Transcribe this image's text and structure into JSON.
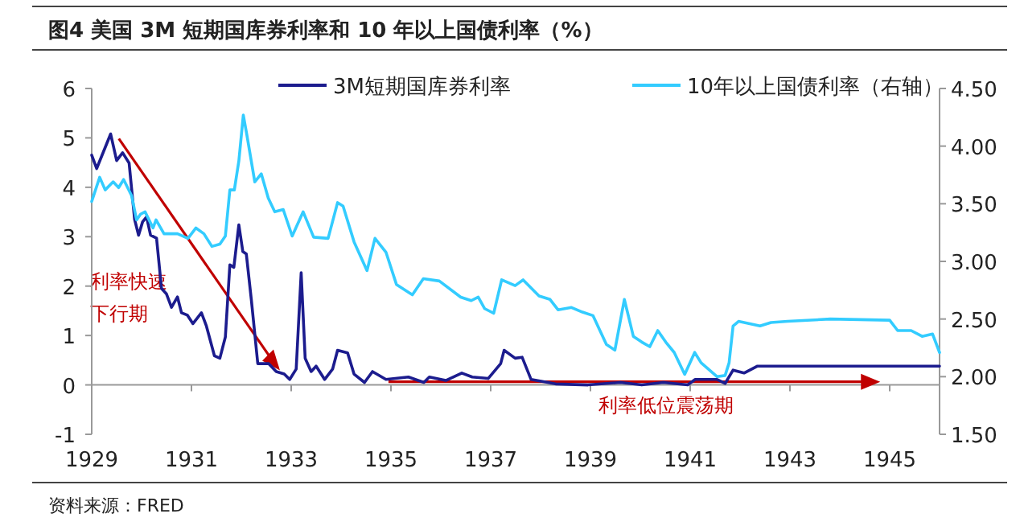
{
  "chart_data": {
    "type": "line",
    "title": "图4  美国 3M 短期国库券利率和 10 年以上国债利率（%）",
    "xlim": [
      1929,
      1946
    ],
    "xticks": [
      1929,
      1931,
      1933,
      1935,
      1937,
      1939,
      1941,
      1943,
      1945
    ],
    "ylim": [
      -1,
      6
    ],
    "yticks": [
      -1,
      0,
      1,
      2,
      3,
      4,
      5,
      6
    ],
    "y2lim": [
      1.5,
      4.5
    ],
    "y2ticks": [
      {
        "value": 1.5,
        "label": "1.50"
      },
      {
        "value": 2,
        "label": "2.00"
      },
      {
        "value": 2.5,
        "label": "2.50"
      },
      {
        "value": 3,
        "label": "3.00"
      },
      {
        "value": 3.5,
        "label": "3.50"
      },
      {
        "value": 4,
        "label": "4.00"
      },
      {
        "value": 4.5,
        "label": "4.50"
      }
    ],
    "legend": "top",
    "series": [
      {
        "name": "3M短期国库券利率",
        "color": "#1c1c8e",
        "x": [
          1929.0,
          1929.1,
          1929.38,
          1929.5,
          1929.62,
          1929.75,
          1929.86,
          1929.94,
          1930.02,
          1930.1,
          1930.18,
          1930.3,
          1930.4,
          1930.5,
          1930.6,
          1930.72,
          1930.8,
          1930.92,
          1931.03,
          1931.2,
          1931.3,
          1931.46,
          1931.57,
          1931.68,
          1931.77,
          1931.85,
          1931.95,
          1932.03,
          1932.1,
          1932.2,
          1932.33,
          1932.55,
          1932.7,
          1932.86,
          1932.97,
          1933.1,
          1933.2,
          1933.28,
          1933.4,
          1933.5,
          1933.67,
          1933.83,
          1933.93,
          1934.13,
          1934.26,
          1934.47,
          1934.63,
          1934.9,
          1935.35,
          1935.66,
          1935.77,
          1936.1,
          1936.42,
          1936.63,
          1936.95,
          1937.2,
          1937.27,
          1937.49,
          1937.63,
          1937.81,
          1938.3,
          1938.95,
          1939.6,
          1940.03,
          1940.46,
          1940.95,
          1941.1,
          1941.54,
          1941.7,
          1941.86,
          1942.08,
          1942.35,
          1943.27,
          1946.0
        ],
        "values": [
          4.65,
          4.38,
          5.08,
          4.54,
          4.7,
          4.49,
          3.35,
          3.03,
          3.3,
          3.4,
          3.03,
          2.97,
          1.95,
          1.84,
          1.57,
          1.78,
          1.46,
          1.41,
          1.24,
          1.46,
          1.19,
          0.59,
          0.54,
          0.97,
          2.43,
          2.38,
          3.24,
          2.7,
          2.65,
          1.73,
          0.43,
          0.43,
          0.27,
          0.22,
          0.11,
          0.32,
          2.27,
          0.54,
          0.27,
          0.38,
          0.11,
          0.32,
          0.7,
          0.65,
          0.22,
          0.05,
          0.27,
          0.11,
          0.16,
          0.05,
          0.16,
          0.09,
          0.24,
          0.16,
          0.13,
          0.43,
          0.7,
          0.54,
          0.56,
          0.11,
          0.02,
          0.0,
          0.05,
          0.0,
          0.05,
          0.0,
          0.11,
          0.11,
          0.03,
          0.3,
          0.24,
          0.38,
          0.38,
          0.38
        ]
      },
      {
        "name": "10年以上国债利率（右轴）",
        "color": "#33ccff",
        "axis": "y2",
        "x": [
          1929.0,
          1929.16,
          1929.27,
          1929.43,
          1929.54,
          1929.64,
          1929.8,
          1929.9,
          1929.98,
          1930.07,
          1930.23,
          1930.29,
          1930.45,
          1930.72,
          1930.93,
          1931.09,
          1931.25,
          1931.41,
          1931.57,
          1931.68,
          1931.77,
          1931.86,
          1931.95,
          1932.04,
          1932.11,
          1932.27,
          1932.4,
          1932.54,
          1932.67,
          1932.84,
          1933.02,
          1933.24,
          1933.45,
          1933.74,
          1933.93,
          1934.04,
          1934.26,
          1934.52,
          1934.68,
          1934.9,
          1935.11,
          1935.43,
          1935.65,
          1935.97,
          1936.4,
          1936.61,
          1936.75,
          1936.88,
          1937.06,
          1937.22,
          1937.49,
          1937.65,
          1937.97,
          1938.19,
          1938.35,
          1938.62,
          1938.84,
          1939.05,
          1939.32,
          1939.49,
          1939.68,
          1939.86,
          1940.03,
          1940.19,
          1940.35,
          1940.51,
          1940.68,
          1940.89,
          1941.09,
          1941.22,
          1941.54,
          1941.7,
          1941.78,
          1941.86,
          1941.97,
          1942.4,
          1942.62,
          1942.95,
          1943.81,
          1945.0,
          1945.16,
          1945.43,
          1945.65,
          1945.86,
          1946.0
        ],
        "values": [
          3.52,
          3.73,
          3.62,
          3.69,
          3.64,
          3.71,
          3.57,
          3.36,
          3.41,
          3.43,
          3.29,
          3.36,
          3.24,
          3.24,
          3.2,
          3.29,
          3.24,
          3.13,
          3.15,
          3.22,
          3.62,
          3.62,
          3.87,
          4.27,
          4.1,
          3.69,
          3.76,
          3.55,
          3.43,
          3.45,
          3.22,
          3.43,
          3.21,
          3.2,
          3.51,
          3.48,
          3.17,
          2.92,
          3.2,
          3.08,
          2.8,
          2.71,
          2.85,
          2.83,
          2.69,
          2.66,
          2.69,
          2.59,
          2.55,
          2.84,
          2.79,
          2.84,
          2.7,
          2.67,
          2.58,
          2.6,
          2.56,
          2.53,
          2.28,
          2.23,
          2.67,
          2.35,
          2.3,
          2.26,
          2.4,
          2.3,
          2.21,
          2.02,
          2.21,
          2.12,
          2.0,
          2.01,
          2.12,
          2.44,
          2.48,
          2.44,
          2.47,
          2.48,
          2.5,
          2.49,
          2.4,
          2.4,
          2.35,
          2.37,
          2.21
        ]
      }
    ],
    "annotations": [
      "利率快速下行期",
      "利率低位震荡期",
      "资料来源：FRED"
    ]
  }
}
